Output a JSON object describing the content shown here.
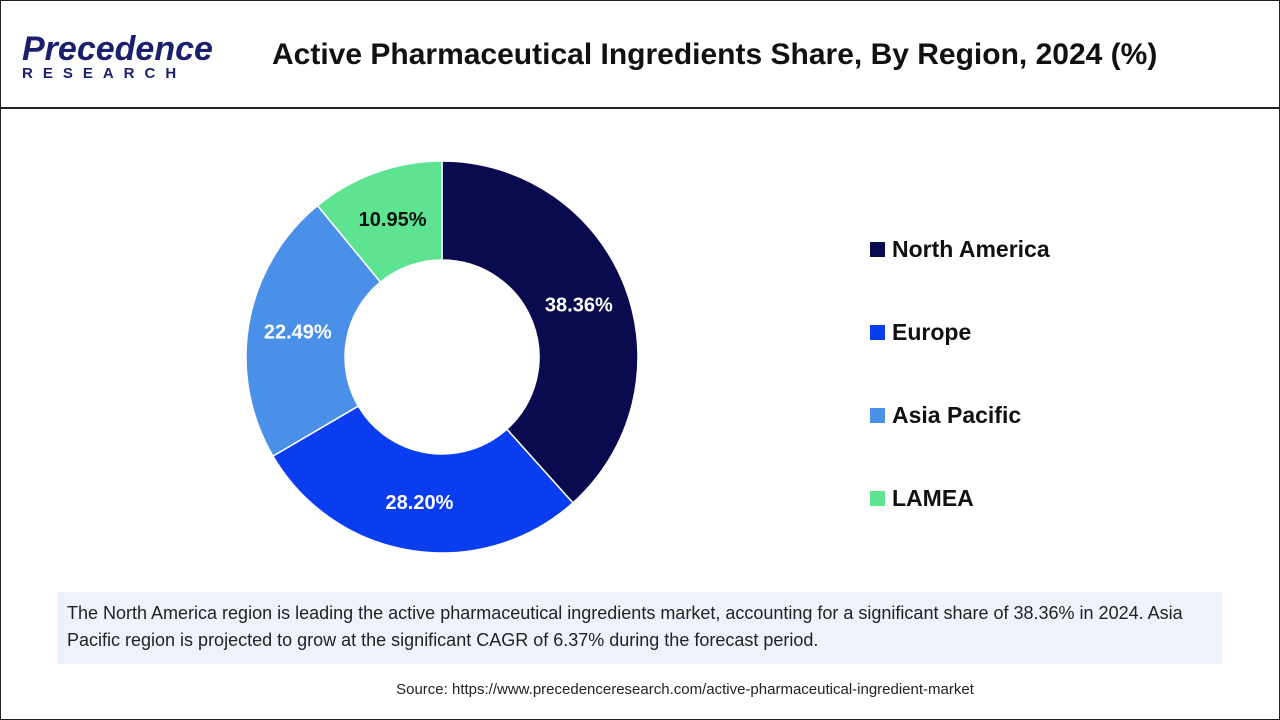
{
  "header": {
    "logo_top": "Precedence",
    "logo_bottom": "RESEARCH",
    "title": "Active Pharmaceutical Ingredients Share, By Region, 2024 (%)"
  },
  "chart_data": {
    "type": "pie",
    "donut": true,
    "title": "Active Pharmaceutical Ingredients Share, By Region, 2024 (%)",
    "categories": [
      "North America",
      "Europe",
      "Asia Pacific",
      "LAMEA"
    ],
    "values": [
      38.36,
      28.2,
      22.49,
      10.95
    ],
    "labels": [
      "38.36%",
      "28.20%",
      "22.49%",
      "10.95%"
    ],
    "colors": [
      "#0a0a4f",
      "#0b3df0",
      "#4a90e8",
      "#5ee391"
    ],
    "label_colors": [
      "#ffffff",
      "#ffffff",
      "#ffffff",
      "#111111"
    ],
    "legend_placement": "right"
  },
  "caption": "The North America region is leading the active pharmaceutical ingredients market, accounting for a significant share of 38.36% in 2024. Asia Pacific region is projected to grow at the significant CAGR of 6.37% during the forecast period.",
  "source": "Source: https://www.precedenceresearch.com/active-pharmaceutical-ingredient-market"
}
